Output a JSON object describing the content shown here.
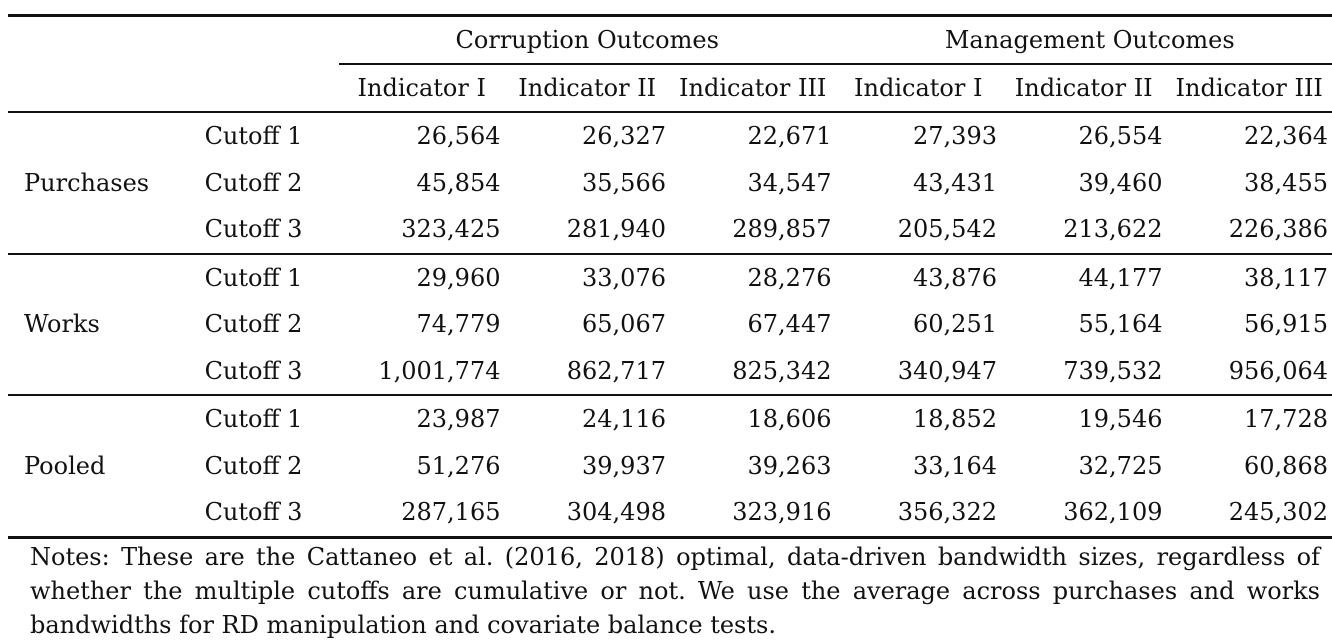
{
  "header": {
    "group1": "Corruption Outcomes",
    "group2": "Management Outcomes",
    "columns": [
      "Indicator I",
      "Indicator II",
      "Indicator III",
      "Indicator I",
      "Indicator II",
      "Indicator III"
    ]
  },
  "groups": [
    {
      "name": "Purchases",
      "rows": [
        {
          "cutoff": "Cutoff 1",
          "values": [
            "26,564",
            "26,327",
            "22,671",
            "27,393",
            "26,554",
            "22,364"
          ]
        },
        {
          "cutoff": "Cutoff 2",
          "values": [
            "45,854",
            "35,566",
            "34,547",
            "43,431",
            "39,460",
            "38,455"
          ]
        },
        {
          "cutoff": "Cutoff 3",
          "values": [
            "323,425",
            "281,940",
            "289,857",
            "205,542",
            "213,622",
            "226,386"
          ]
        }
      ]
    },
    {
      "name": "Works",
      "rows": [
        {
          "cutoff": "Cutoff 1",
          "values": [
            "29,960",
            "33,076",
            "28,276",
            "43,876",
            "44,177",
            "38,117"
          ]
        },
        {
          "cutoff": "Cutoff 2",
          "values": [
            "74,779",
            "65,067",
            "67,447",
            "60,251",
            "55,164",
            "56,915"
          ]
        },
        {
          "cutoff": "Cutoff 3",
          "values": [
            "1,001,774",
            "862,717",
            "825,342",
            "340,947",
            "739,532",
            "956,064"
          ]
        }
      ]
    },
    {
      "name": "Pooled",
      "rows": [
        {
          "cutoff": "Cutoff 1",
          "values": [
            "23,987",
            "24,116",
            "18,606",
            "18,852",
            "19,546",
            "17,728"
          ]
        },
        {
          "cutoff": "Cutoff 2",
          "values": [
            "51,276",
            "39,937",
            "39,263",
            "33,164",
            "32,725",
            "60,868"
          ]
        },
        {
          "cutoff": "Cutoff 3",
          "values": [
            "287,165",
            "304,498",
            "323,916",
            "356,322",
            "362,109",
            "245,302"
          ]
        }
      ]
    }
  ],
  "notes": "Notes: These are the Cattaneo et al. (2016, 2018) optimal, data-driven bandwidth sizes, regardless of whether the multiple cutoffs are cumulative or not. We use the average across purchases and works bandwidths for RD manipulation and covariate balance tests."
}
